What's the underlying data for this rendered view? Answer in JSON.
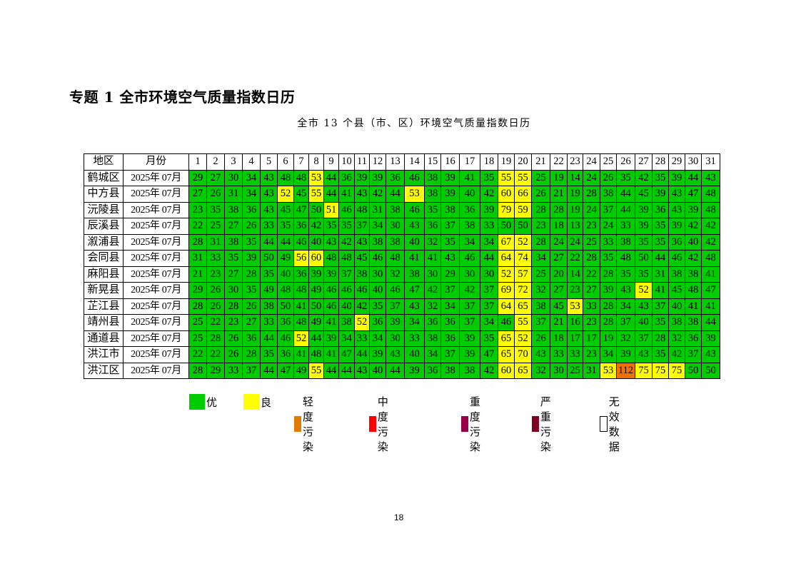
{
  "title": "专题 1  全市环境空气质量指数日历",
  "subtitle": "全市 13 个县（市、区）环境空气质量指数日历",
  "table": {
    "header_region": "地区",
    "header_month": "月份",
    "days": [
      "1",
      "2",
      "3",
      "4",
      "5",
      "6",
      "7",
      "8",
      "9",
      "10",
      "11",
      "12",
      "13",
      "14",
      "15",
      "16",
      "17",
      "18",
      "19",
      "20",
      "21",
      "22",
      "23",
      "24",
      "25",
      "26",
      "27",
      "28",
      "29",
      "30",
      "31"
    ],
    "rows": [
      {
        "region": "鹤城区",
        "month": "2025年  07月",
        "values": [
          29,
          27,
          30,
          34,
          43,
          48,
          48,
          53,
          44,
          36,
          39,
          39,
          36,
          46,
          38,
          39,
          41,
          35,
          55,
          55,
          25,
          19,
          14,
          24,
          26,
          35,
          42,
          35,
          39,
          44,
          43
        ]
      },
      {
        "region": "中方县",
        "month": "2025年  07月",
        "values": [
          27,
          26,
          31,
          34,
          43,
          52,
          45,
          55,
          44,
          41,
          43,
          42,
          44,
          53,
          38,
          39,
          40,
          42,
          60,
          66,
          26,
          21,
          19,
          28,
          38,
          44,
          45,
          39,
          43,
          47,
          48
        ]
      },
      {
        "region": "沅陵县",
        "month": "2025年  07月",
        "values": [
          23,
          35,
          38,
          36,
          43,
          45,
          47,
          50,
          51,
          46,
          48,
          31,
          38,
          46,
          35,
          38,
          36,
          39,
          79,
          59,
          28,
          28,
          19,
          24,
          37,
          44,
          39,
          36,
          43,
          39,
          48
        ]
      },
      {
        "region": "辰溪县",
        "month": "2025年  07月",
        "values": [
          22,
          25,
          27,
          26,
          33,
          35,
          36,
          42,
          35,
          35,
          37,
          34,
          30,
          43,
          36,
          37,
          38,
          33,
          50,
          50,
          23,
          18,
          13,
          23,
          24,
          33,
          39,
          35,
          39,
          42,
          42
        ]
      },
      {
        "region": "溆浦县",
        "month": "2025年  07月",
        "values": [
          28,
          31,
          38,
          35,
          44,
          44,
          46,
          40,
          43,
          42,
          43,
          38,
          38,
          40,
          32,
          35,
          34,
          34,
          67,
          52,
          28,
          24,
          24,
          25,
          33,
          38,
          35,
          35,
          36,
          40,
          42
        ]
      },
      {
        "region": "会同县",
        "month": "2025年  07月",
        "values": [
          31,
          33,
          35,
          39,
          50,
          49,
          56,
          60,
          48,
          48,
          45,
          46,
          48,
          41,
          41,
          43,
          46,
          44,
          64,
          74,
          34,
          27,
          22,
          28,
          35,
          48,
          50,
          44,
          46,
          42,
          48
        ]
      },
      {
        "region": "麻阳县",
        "month": "2025年  07月",
        "values": [
          21,
          23,
          27,
          28,
          35,
          40,
          36,
          39,
          39,
          37,
          38,
          30,
          32,
          38,
          30,
          29,
          30,
          30,
          52,
          57,
          25,
          20,
          14,
          22,
          28,
          35,
          35,
          31,
          38,
          38,
          41
        ]
      },
      {
        "region": "新晃县",
        "month": "2025年  07月",
        "values": [
          29,
          26,
          30,
          35,
          49,
          48,
          48,
          49,
          46,
          46,
          46,
          40,
          46,
          47,
          42,
          37,
          42,
          37,
          69,
          72,
          32,
          27,
          23,
          27,
          39,
          43,
          52,
          41,
          45,
          48,
          47
        ]
      },
      {
        "region": "芷江县",
        "month": "2025年  07月",
        "values": [
          28,
          26,
          28,
          26,
          38,
          50,
          41,
          50,
          46,
          40,
          42,
          35,
          37,
          43,
          32,
          34,
          37,
          37,
          64,
          65,
          38,
          45,
          53,
          33,
          28,
          34,
          43,
          37,
          40,
          41,
          41
        ]
      },
      {
        "region": "靖州县",
        "month": "2025年  07月",
        "values": [
          25,
          22,
          23,
          27,
          33,
          36,
          48,
          49,
          41,
          38,
          52,
          36,
          39,
          34,
          36,
          36,
          37,
          34,
          46,
          55,
          37,
          21,
          16,
          23,
          28,
          37,
          40,
          35,
          38,
          38,
          44
        ]
      },
      {
        "region": "通道县",
        "month": "2025年  07月",
        "values": [
          25,
          28,
          26,
          36,
          44,
          46,
          52,
          44,
          39,
          34,
          33,
          34,
          30,
          33,
          38,
          36,
          39,
          35,
          65,
          52,
          26,
          18,
          17,
          17,
          19,
          32,
          37,
          28,
          32,
          36,
          39
        ]
      },
      {
        "region": "洪江市",
        "month": "2025年  07月",
        "values": [
          22,
          22,
          26,
          28,
          35,
          36,
          41,
          48,
          41,
          47,
          44,
          39,
          43,
          40,
          34,
          37,
          39,
          47,
          65,
          70,
          43,
          33,
          33,
          23,
          34,
          39,
          43,
          35,
          42,
          37,
          43
        ]
      },
      {
        "region": "洪江区",
        "month": "2025年  07月",
        "values": [
          28,
          29,
          33,
          37,
          44,
          47,
          49,
          55,
          44,
          44,
          43,
          40,
          44,
          39,
          36,
          38,
          38,
          42,
          60,
          65,
          32,
          30,
          25,
          31,
          53,
          112,
          75,
          75,
          75,
          50,
          50
        ]
      }
    ]
  },
  "legend": [
    {
      "label": "优",
      "color": "#00cc00",
      "max": 50
    },
    {
      "label": "良",
      "color": "#ffff00",
      "max": 100
    },
    {
      "label": "轻度污染",
      "color": "#e07b00",
      "max": 150
    },
    {
      "label": "中度污染",
      "color": "#ff0000",
      "max": 200
    },
    {
      "label": "重度污染",
      "color": "#99004c",
      "max": 300
    },
    {
      "label": "严重污染",
      "color": "#7e0023",
      "max": 100000
    },
    {
      "label": "无效数据",
      "color": "#ffffff"
    }
  ],
  "cell_colors": {
    "light_pollution_cell": "#f07000"
  },
  "page_number": "18"
}
